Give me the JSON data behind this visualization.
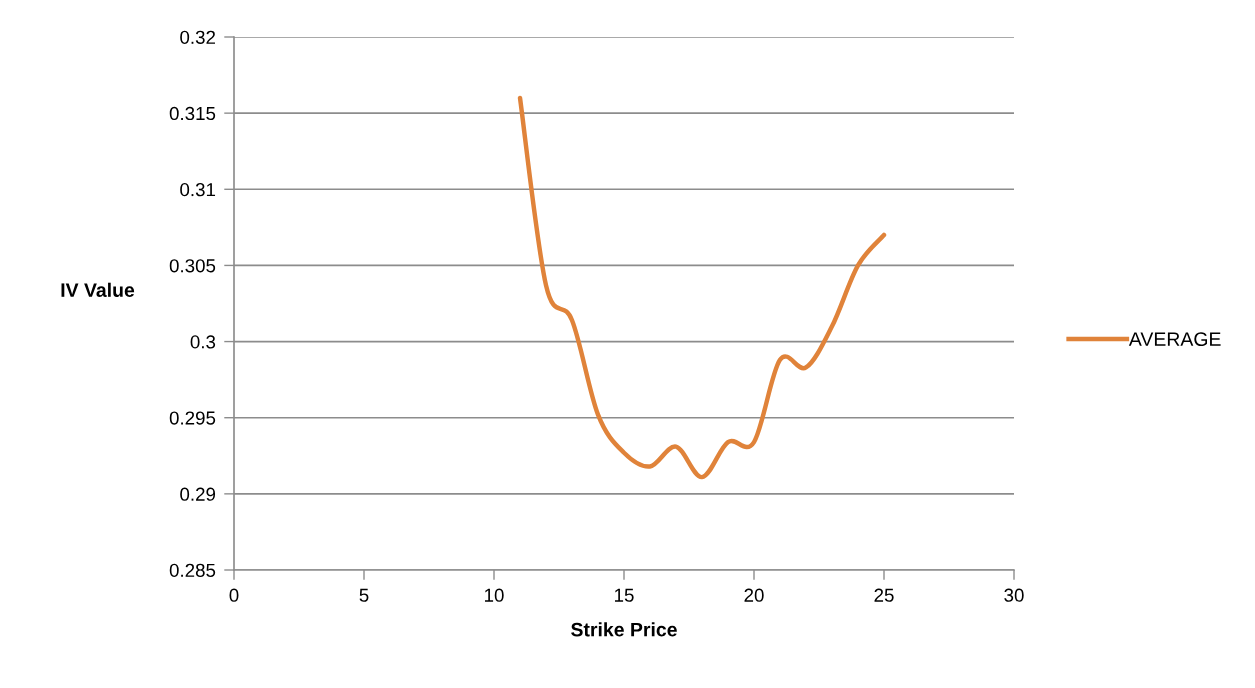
{
  "chart_data": {
    "type": "line",
    "xlabel": "Strike Price",
    "ylabel": "IV Value",
    "x": [
      11,
      12,
      13,
      14,
      15,
      16,
      17,
      18,
      19,
      20,
      21,
      22,
      23,
      24,
      25
    ],
    "series": [
      {
        "name": "AVERAGE",
        "color": "#e0833a",
        "values": [
          0.316,
          0.3037,
          0.3014,
          0.2952,
          0.2927,
          0.2918,
          0.2931,
          0.2911,
          0.2934,
          0.2934,
          0.2988,
          0.2983,
          0.301,
          0.305,
          0.307
        ]
      }
    ],
    "xlim": [
      0,
      30
    ],
    "xticks": [
      0,
      5,
      10,
      15,
      20,
      25,
      30
    ],
    "ylim": [
      0.285,
      0.32
    ],
    "yticks": [
      0.285,
      0.29,
      0.295,
      0.3,
      0.305,
      0.31,
      0.315,
      0.32
    ],
    "grid": "y",
    "legend": "right",
    "marker": "none",
    "line_style": "solid"
  }
}
